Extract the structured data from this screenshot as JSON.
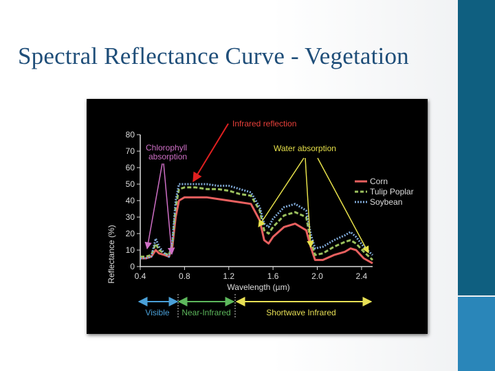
{
  "slide": {
    "title": "Spectral Reflectance Curve - Vegetation"
  },
  "chart_data": {
    "type": "line",
    "ylabel": "Reflectance (%)",
    "xlabel": "Wavelength (µm)",
    "xlim": [
      0.4,
      2.5
    ],
    "ylim": [
      0,
      80
    ],
    "x_ticks": [
      "0.4",
      "0.8",
      "1.2",
      "1.6",
      "2.0",
      "2.4"
    ],
    "y_ticks": [
      "0",
      "10",
      "20",
      "30",
      "40",
      "50",
      "60",
      "70",
      "80"
    ],
    "legend_position": "right",
    "series": [
      {
        "name": "Corn",
        "color": "#e8605f",
        "style": "solid",
        "points": [
          [
            0.4,
            5
          ],
          [
            0.45,
            5
          ],
          [
            0.5,
            6
          ],
          [
            0.54,
            10
          ],
          [
            0.57,
            8
          ],
          [
            0.62,
            7
          ],
          [
            0.66,
            6
          ],
          [
            0.69,
            12
          ],
          [
            0.72,
            30
          ],
          [
            0.75,
            40
          ],
          [
            0.8,
            42
          ],
          [
            0.9,
            42
          ],
          [
            1.0,
            42
          ],
          [
            1.1,
            41
          ],
          [
            1.2,
            40
          ],
          [
            1.3,
            39
          ],
          [
            1.4,
            38
          ],
          [
            1.48,
            28
          ],
          [
            1.52,
            16
          ],
          [
            1.56,
            14
          ],
          [
            1.6,
            18
          ],
          [
            1.7,
            24
          ],
          [
            1.8,
            26
          ],
          [
            1.9,
            22
          ],
          [
            1.94,
            12
          ],
          [
            1.98,
            4
          ],
          [
            2.05,
            4
          ],
          [
            2.15,
            7
          ],
          [
            2.25,
            9
          ],
          [
            2.3,
            11
          ],
          [
            2.35,
            10
          ],
          [
            2.42,
            5
          ],
          [
            2.5,
            2
          ]
        ]
      },
      {
        "name": "Tulip Poplar",
        "color": "#9cc15e",
        "style": "dashed",
        "points": [
          [
            0.4,
            6
          ],
          [
            0.45,
            6
          ],
          [
            0.5,
            7
          ],
          [
            0.54,
            14
          ],
          [
            0.57,
            10
          ],
          [
            0.62,
            8
          ],
          [
            0.66,
            7
          ],
          [
            0.69,
            14
          ],
          [
            0.72,
            36
          ],
          [
            0.75,
            47
          ],
          [
            0.8,
            48
          ],
          [
            0.9,
            48
          ],
          [
            1.0,
            47
          ],
          [
            1.1,
            47
          ],
          [
            1.2,
            46
          ],
          [
            1.3,
            44
          ],
          [
            1.4,
            43
          ],
          [
            1.48,
            34
          ],
          [
            1.52,
            22
          ],
          [
            1.56,
            20
          ],
          [
            1.6,
            24
          ],
          [
            1.7,
            31
          ],
          [
            1.8,
            33
          ],
          [
            1.9,
            30
          ],
          [
            1.94,
            16
          ],
          [
            1.98,
            7
          ],
          [
            2.05,
            8
          ],
          [
            2.15,
            12
          ],
          [
            2.25,
            15
          ],
          [
            2.3,
            16
          ],
          [
            2.35,
            14
          ],
          [
            2.42,
            9
          ],
          [
            2.5,
            4
          ]
        ]
      },
      {
        "name": "Soybean",
        "color": "#7fa9d6",
        "style": "dotted",
        "points": [
          [
            0.4,
            5
          ],
          [
            0.45,
            5
          ],
          [
            0.5,
            6
          ],
          [
            0.54,
            17
          ],
          [
            0.57,
            12
          ],
          [
            0.62,
            8
          ],
          [
            0.66,
            6
          ],
          [
            0.69,
            15
          ],
          [
            0.72,
            40
          ],
          [
            0.75,
            50
          ],
          [
            0.8,
            50
          ],
          [
            0.9,
            50
          ],
          [
            1.0,
            50
          ],
          [
            1.1,
            49
          ],
          [
            1.2,
            49
          ],
          [
            1.3,
            47
          ],
          [
            1.4,
            45
          ],
          [
            1.48,
            36
          ],
          [
            1.52,
            26
          ],
          [
            1.56,
            24
          ],
          [
            1.6,
            29
          ],
          [
            1.7,
            36
          ],
          [
            1.8,
            38
          ],
          [
            1.9,
            34
          ],
          [
            1.94,
            20
          ],
          [
            1.98,
            11
          ],
          [
            2.05,
            12
          ],
          [
            2.15,
            16
          ],
          [
            2.25,
            19
          ],
          [
            2.3,
            21
          ],
          [
            2.35,
            18
          ],
          [
            2.42,
            12
          ],
          [
            2.5,
            7
          ]
        ]
      }
    ],
    "annotations": {
      "infrared": "Infrared reflection",
      "chlorophyll": [
        "Chlorophyll",
        "absorption"
      ],
      "water": "Water absorption"
    },
    "regions": [
      {
        "label": "Visible",
        "from": 0.4,
        "to": 0.7,
        "color": "#4aa0d8"
      },
      {
        "label": "Near-Infrared",
        "from": 0.7,
        "to": 1.3,
        "color": "#5db85c"
      },
      {
        "label": "Shortwave Infrared",
        "from": 1.3,
        "to": 2.5,
        "color": "#e8e055"
      }
    ]
  }
}
